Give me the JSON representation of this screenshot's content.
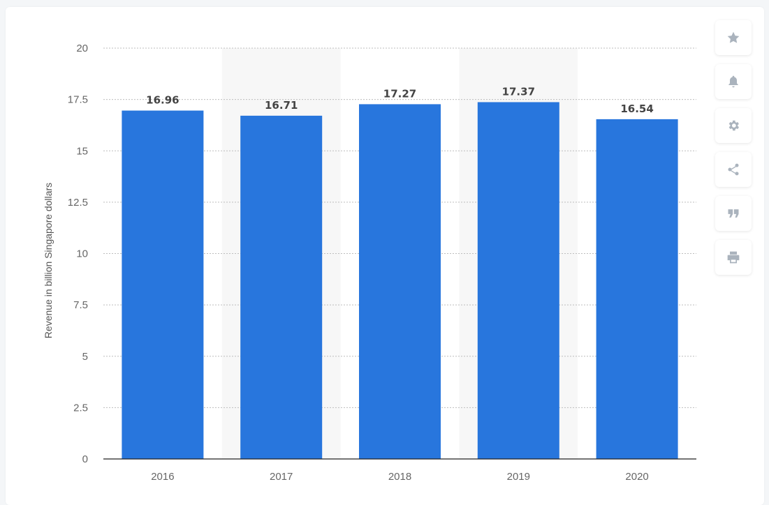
{
  "chart_data": {
    "type": "bar",
    "categories": [
      "2016",
      "2017",
      "2018",
      "2019",
      "2020"
    ],
    "values": [
      16.96,
      16.71,
      17.27,
      17.37,
      16.54
    ],
    "data_labels": [
      "16.96",
      "16.71",
      "17.27",
      "17.37",
      "16.54"
    ],
    "ylabel": "Revenue in billion Singapore dollars",
    "xlabel": "",
    "title": "",
    "ylim": [
      0,
      20
    ],
    "yticks": [
      0,
      2.5,
      5,
      7.5,
      10,
      12.5,
      15,
      17.5,
      20
    ],
    "ytick_labels": [
      "0",
      "2.5",
      "5",
      "7.5",
      "10",
      "12.5",
      "15",
      "17.5",
      "20"
    ],
    "grid": true,
    "bar_color": "#2876dd",
    "band_color": "#f7f7f7"
  },
  "toolbar": {
    "buttons": [
      {
        "name": "favorite-button",
        "icon": "star-icon"
      },
      {
        "name": "notification-button",
        "icon": "bell-icon"
      },
      {
        "name": "settings-button",
        "icon": "gear-icon"
      },
      {
        "name": "share-button",
        "icon": "share-icon"
      },
      {
        "name": "cite-button",
        "icon": "quote-icon"
      },
      {
        "name": "print-button",
        "icon": "printer-icon"
      }
    ]
  }
}
